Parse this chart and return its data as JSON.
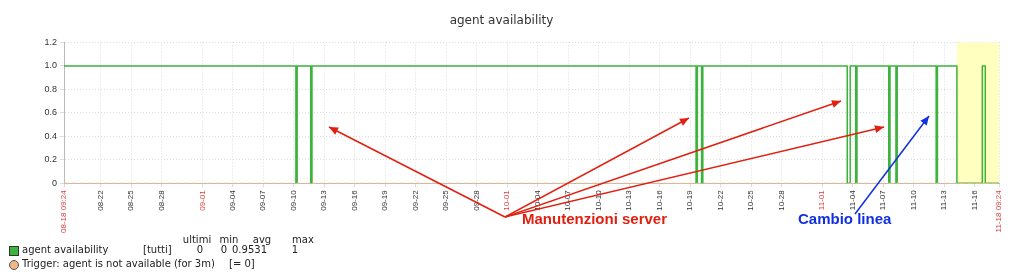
{
  "chart_data": {
    "type": "step",
    "title": "agent availability",
    "x": [
      "--08-18T09:24",
      "--09-10T05:00",
      "--09-10T08:00",
      "--09-11T16:00",
      "--09-11T19:00",
      "--10-19T14:00",
      "--10-19T17:00",
      "--10-20T03:00",
      "--10-20T06:00",
      "--11-03T11:00",
      "--11-03T18:00",
      "--11-04T07:00",
      "--11-04T10:00",
      "--11-07T13:00",
      "--11-07T16:00",
      "--11-08T06:00",
      "--11-08T09:00",
      "--11-12T05:00",
      "--11-12T08:00",
      "--11-14T06:00",
      "--11-16T18:00",
      "--11-17T01:00",
      "--11-18T09:24"
    ],
    "series": [
      {
        "name": "agent availability",
        "color": "#3cb43c",
        "values": [
          1,
          0,
          1,
          0,
          1,
          0,
          1,
          0,
          1,
          0,
          1,
          0,
          1,
          0,
          1,
          0,
          1,
          0,
          1,
          0,
          1,
          0,
          0
        ]
      }
    ],
    "xlim": [
      "--08-18T09:24",
      "--11-18T09:24"
    ],
    "xticks": [
      {
        "value": "--08-18T09:24",
        "label": "08-18 09:24"
      },
      {
        "value": "--08-22",
        "label": "08-22"
      },
      {
        "value": "--08-25",
        "label": "08-25"
      },
      {
        "value": "--08-28",
        "label": "08-28"
      },
      {
        "value": "--09-01",
        "label": "09-01"
      },
      {
        "value": "--09-04",
        "label": "09-04"
      },
      {
        "value": "--09-07",
        "label": "09-07"
      },
      {
        "value": "--09-10",
        "label": "09-10"
      },
      {
        "value": "--09-13",
        "label": "09-13"
      },
      {
        "value": "--09-16",
        "label": "09-16"
      },
      {
        "value": "--09-19",
        "label": "09-19"
      },
      {
        "value": "--09-22",
        "label": "09-22"
      },
      {
        "value": "--09-25",
        "label": "09-25"
      },
      {
        "value": "--09-28",
        "label": "09-28"
      },
      {
        "value": "--10-01",
        "label": "10-01"
      },
      {
        "value": "--10-04",
        "label": "10-04"
      },
      {
        "value": "--10-07",
        "label": "10-07"
      },
      {
        "value": "--10-10",
        "label": "10-10"
      },
      {
        "value": "--10-13",
        "label": "10-13"
      },
      {
        "value": "--10-16",
        "label": "10-16"
      },
      {
        "value": "--10-19",
        "label": "10-19"
      },
      {
        "value": "--10-22",
        "label": "10-22"
      },
      {
        "value": "--10-25",
        "label": "10-25"
      },
      {
        "value": "--10-28",
        "label": "10-28"
      },
      {
        "value": "--11-01",
        "label": "11-01"
      },
      {
        "value": "--11-04",
        "label": "11-04"
      },
      {
        "value": "--11-07",
        "label": "11-07"
      },
      {
        "value": "--11-10",
        "label": "11-10"
      },
      {
        "value": "--11-13",
        "label": "11-13"
      },
      {
        "value": "--11-16",
        "label": "11-16"
      },
      {
        "value": "--11-18T09:24",
        "label": "11-18 09:24"
      }
    ],
    "ylim": [
      0,
      1.2
    ],
    "yticks": [
      0,
      0.2,
      0.4,
      0.6,
      0.8,
      {
        "value": 1,
        "label": "1.0"
      },
      1.2
    ],
    "grid": true,
    "legend": "bottom",
    "bands": [
      {
        "axis": "x",
        "from": "--11-14T06:00",
        "to": "--11-18T09:24",
        "color": "#ffffc0"
      }
    ],
    "ref_lines": [
      {
        "axis": "y",
        "value": 0,
        "label": "Trigger: agent is not available (for 3m)",
        "color": "#f0b888",
        "line_style": "dashed"
      }
    ],
    "annotations": [
      "ultimi",
      "min",
      "avg",
      "max",
      "[tutti]",
      "0",
      "0",
      "0.9531",
      "1",
      "[= 0]",
      "Manutenzioni server",
      "Cambio linea"
    ]
  }
}
